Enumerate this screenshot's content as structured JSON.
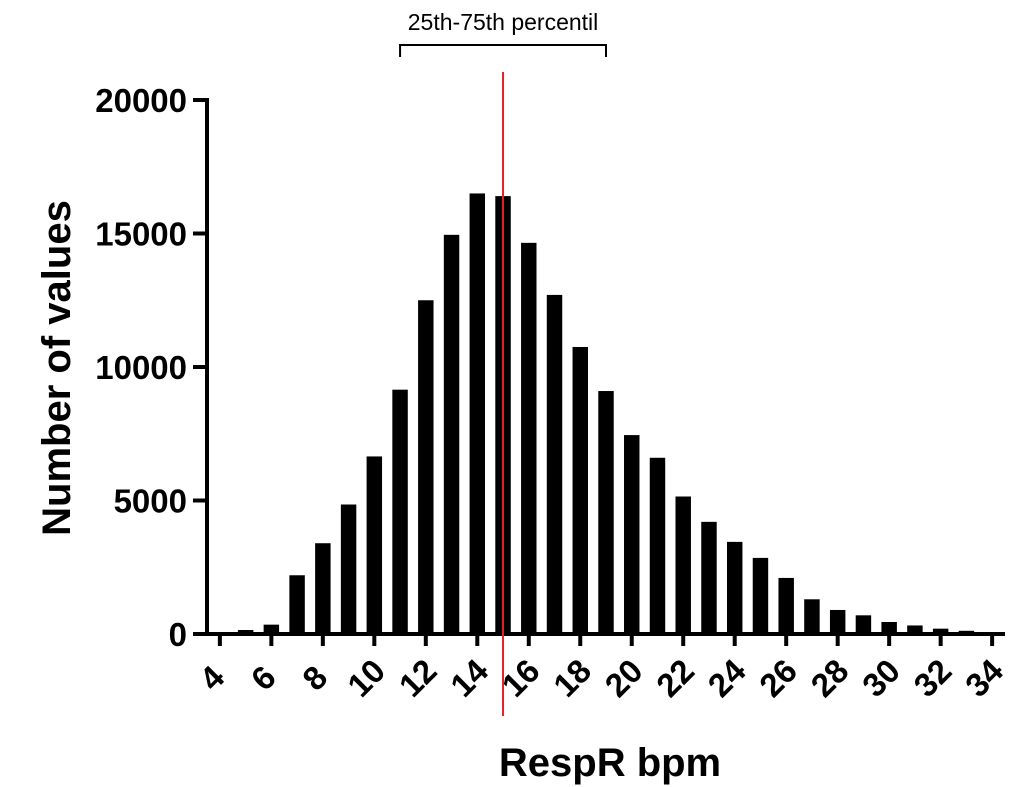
{
  "chart_data": {
    "type": "bar",
    "xlabel": "RespR bpm",
    "ylabel": "Number of values",
    "xlim": [
      3.5,
      34.5
    ],
    "ylim": [
      0,
      20000
    ],
    "yticks": [
      0,
      5000,
      10000,
      15000,
      20000
    ],
    "xticks": [
      4,
      6,
      8,
      10,
      12,
      14,
      16,
      18,
      20,
      22,
      24,
      26,
      28,
      30,
      32,
      34
    ],
    "bar_color": "#000000",
    "x": [
      4,
      5,
      6,
      7,
      8,
      9,
      10,
      11,
      12,
      13,
      14,
      15,
      16,
      17,
      18,
      19,
      20,
      21,
      22,
      23,
      24,
      25,
      26,
      27,
      28,
      29,
      30,
      31,
      32,
      33,
      34
    ],
    "values": [
      20,
      150,
      350,
      2200,
      3400,
      4850,
      6650,
      9150,
      12500,
      14950,
      16500,
      16400,
      14650,
      12700,
      10750,
      9100,
      7450,
      6600,
      5150,
      4200,
      3450,
      2850,
      2100,
      1300,
      900,
      700,
      450,
      320,
      200,
      120,
      50
    ],
    "reference_line": {
      "x": 15.0,
      "color": "#e32227"
    },
    "annotation": {
      "label": "25th-75th percentil",
      "from": 11,
      "to": 19
    }
  }
}
